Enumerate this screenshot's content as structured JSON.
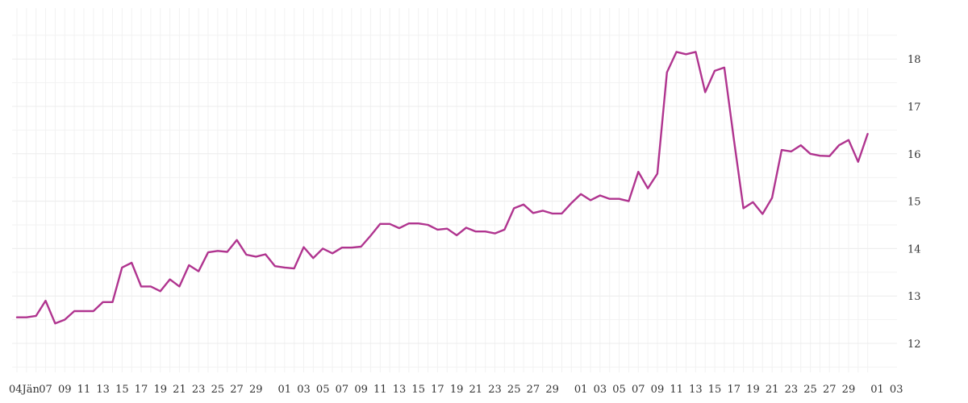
{
  "chart_data": {
    "type": "line",
    "title": "",
    "xlabel": "",
    "ylabel": "",
    "ylim": [
      11.3,
      19.1
    ],
    "y_ticks": [
      12,
      13,
      14,
      15,
      16,
      17,
      18
    ],
    "y_axis_side": "right",
    "grid": true,
    "line_color": "#b0348f",
    "x_tick_labels": [
      "04Jän",
      "07",
      "09",
      "11",
      "13",
      "15",
      "17",
      "19",
      "21",
      "23",
      "25",
      "27",
      "29",
      "01",
      "03",
      "05",
      "07",
      "09",
      "11",
      "13",
      "15",
      "17",
      "19",
      "21",
      "23",
      "25",
      "27",
      "29",
      "01",
      "03",
      "05",
      "07",
      "09",
      "11",
      "13",
      "15",
      "17",
      "19",
      "21",
      "23",
      "25",
      "27",
      "29",
      "01",
      "03"
    ],
    "x_tick_index": [
      0,
      3,
      5,
      7,
      9,
      11,
      13,
      15,
      17,
      19,
      21,
      23,
      25,
      28,
      30,
      32,
      34,
      36,
      38,
      40,
      42,
      44,
      46,
      48,
      50,
      52,
      54,
      56,
      59,
      61,
      63,
      65,
      67,
      69,
      71,
      73,
      75,
      77,
      79,
      81,
      83,
      85,
      87,
      90,
      92
    ],
    "series": [
      {
        "values": [
          12.55,
          12.55,
          12.58,
          12.9,
          12.42,
          12.5,
          12.68,
          12.68,
          12.68,
          12.87,
          12.87,
          13.6,
          13.7,
          13.2,
          13.2,
          13.1,
          13.35,
          13.2,
          13.65,
          13.52,
          13.92,
          13.95,
          13.93,
          14.18,
          13.87,
          13.83,
          13.88,
          13.63,
          13.6,
          13.58,
          14.03,
          13.8,
          14.0,
          13.9,
          14.02,
          14.02,
          14.04,
          14.27,
          14.52,
          14.52,
          14.43,
          14.53,
          14.53,
          14.5,
          14.4,
          14.42,
          14.28,
          14.44,
          14.36,
          14.36,
          14.32,
          14.4,
          14.85,
          14.93,
          14.75,
          14.8,
          14.74,
          14.74,
          14.96,
          15.15,
          15.02,
          15.12,
          15.05,
          15.05,
          15.0,
          15.62,
          15.27,
          15.58,
          17.72,
          18.15,
          18.1,
          18.15,
          17.3,
          17.75,
          17.82,
          16.3,
          14.85,
          14.98,
          14.73,
          15.07,
          16.08,
          16.05,
          16.18,
          16.0,
          15.96,
          15.95,
          16.18,
          16.29,
          15.83,
          16.42
        ]
      }
    ]
  }
}
